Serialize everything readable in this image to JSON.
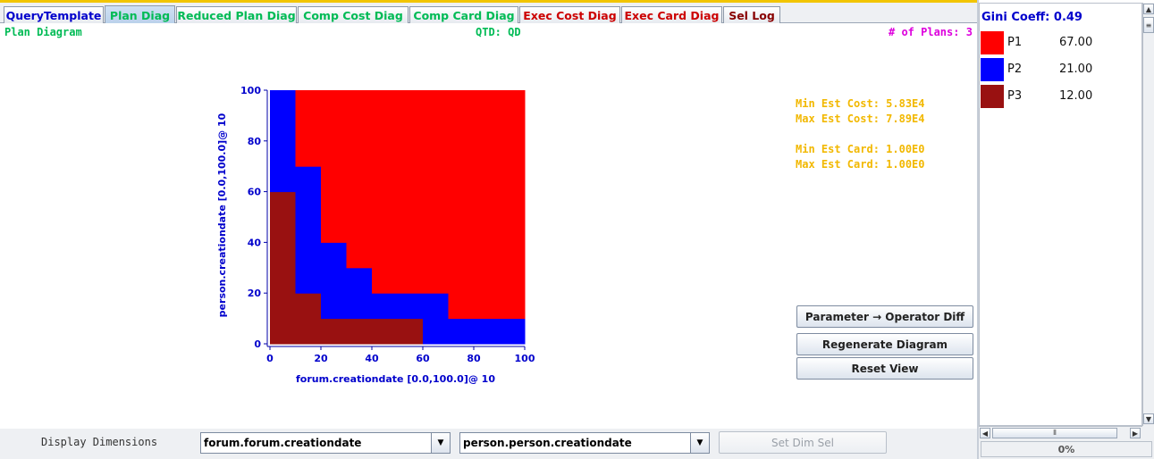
{
  "tabs": [
    {
      "label": "QueryTemplate",
      "color": "#0000cc",
      "active": false
    },
    {
      "label": "Plan Diag",
      "color": "#00bb55",
      "active": true
    },
    {
      "label": "Reduced Plan Diag",
      "color": "#00bb55",
      "active": false
    },
    {
      "label": "Comp Cost Diag",
      "color": "#00bb55",
      "active": false
    },
    {
      "label": "Comp Card Diag",
      "color": "#00bb55",
      "active": false
    },
    {
      "label": "Exec Cost Diag",
      "color": "#cc0000",
      "active": false
    },
    {
      "label": "Exec Card Diag",
      "color": "#cc0000",
      "active": false
    },
    {
      "label": "Sel Log",
      "color": "#880000",
      "active": false
    }
  ],
  "header": {
    "diagram_title": "Plan Diagram",
    "qtd": "QTD: QD",
    "num_plans": "# of Plans: 3"
  },
  "stats": {
    "min_est_cost": "Min Est Cost: 5.83E4",
    "max_est_cost": "Max Est Cost: 7.89E4",
    "min_est_card": "Min Est Card: 1.00E0",
    "max_est_card": "Max Est Card: 1.00E0"
  },
  "chart_data": {
    "type": "heatmap",
    "xlabel": "forum.creationdate [0.0,100.0]@ 10",
    "ylabel": "person.creationdate [0.0,100.0]@ 10",
    "xlim": [
      0,
      100
    ],
    "ylim": [
      0,
      100
    ],
    "x_ticks": [
      "0",
      "20",
      "40",
      "60",
      "80",
      "100"
    ],
    "y_ticks": [
      "0",
      "20",
      "40",
      "60",
      "80",
      "100"
    ],
    "grid_resolution": 10,
    "plan_colors": {
      "P1": "#ff0000",
      "P2": "#0000ff",
      "P3": "#991111"
    },
    "columns": [
      {
        "x_range": [
          0,
          10
        ],
        "P3_to": 60,
        "P2_to": 100
      },
      {
        "x_range": [
          10,
          20
        ],
        "P3_to": 20,
        "P2_to": 70
      },
      {
        "x_range": [
          20,
          30
        ],
        "P3_to": 10,
        "P2_to": 40
      },
      {
        "x_range": [
          30,
          40
        ],
        "P3_to": 10,
        "P2_to": 30
      },
      {
        "x_range": [
          40,
          60
        ],
        "P3_to": 10,
        "P2_to": 20
      },
      {
        "x_range": [
          60,
          70
        ],
        "P3_to": 0,
        "P2_to": 20
      },
      {
        "x_range": [
          70,
          100
        ],
        "P3_to": 0,
        "P2_to": 10
      }
    ]
  },
  "buttons": {
    "param_op_diff": "Parameter → Operator Diff",
    "regenerate": "Regenerate Diagram",
    "reset_view": "Reset View",
    "set_dim_sel": "Set Dim Sel"
  },
  "bottom": {
    "display_dimensions": "Display Dimensions",
    "dim1_value": "forum.forum.creationdate",
    "dim2_value": "person.person.creationdate"
  },
  "legend": {
    "gini": "Gini Coeff: 0.49",
    "items": [
      {
        "name": "P1",
        "value": "67.00",
        "color": "#ff0000"
      },
      {
        "name": "P2",
        "value": "21.00",
        "color": "#0000ff"
      },
      {
        "name": "P3",
        "value": "12.00",
        "color": "#991111"
      }
    ]
  },
  "progress": {
    "label": "0%",
    "value": 0
  }
}
